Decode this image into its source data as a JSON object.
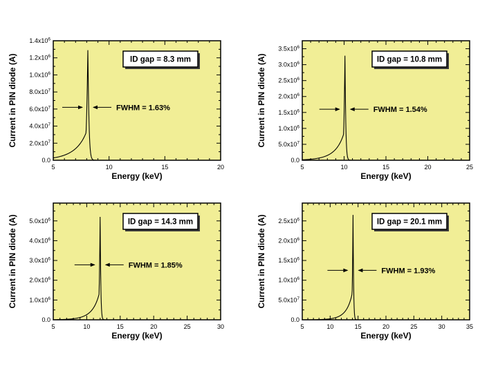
{
  "page": {
    "background": "#ffffff",
    "plot_background": "#f1ee96",
    "curve_color": "#000000",
    "frame_color": "#000000",
    "shadow_color": "#3a3a3a"
  },
  "chart_data": [
    {
      "type": "line",
      "title": "ID gap = 8.3 mm",
      "fwhm_label": "FWHM = 1.63%",
      "fwhm_percent": 1.63,
      "xlabel": "Energy (keV)",
      "ylabel": "Current in PIN diode (A)",
      "xlim": [
        5,
        20
      ],
      "x_major_ticks": [
        5,
        10,
        15,
        20
      ],
      "x_minor_step": 1,
      "ylim": [
        0,
        1.4e-06
      ],
      "y_major_ticks": [
        0,
        2e-07,
        4e-07,
        6e-07,
        8e-07,
        1e-06,
        1.2e-06,
        1.4e-06
      ],
      "y_tick_labels": [
        "0.0",
        "2.0x10^7",
        "4.0x10^7",
        "6.0x10^7",
        "8.0x10^7",
        "1.0x10^6",
        "1.2x10^6",
        "1.4x10^6"
      ],
      "peak_energy_kev": 8.1,
      "peak_current_a": 1.29e-06,
      "fwhm_arrow_y": 6.2e-07,
      "grid": false,
      "legend": false
    },
    {
      "type": "line",
      "title": "ID gap = 10.8 mm",
      "fwhm_label": "FWHM = 1.54%",
      "fwhm_percent": 1.54,
      "xlabel": "Energy (keV)",
      "ylabel": "Current in PIN diode (A)",
      "xlim": [
        5,
        25
      ],
      "x_major_ticks": [
        5,
        10,
        15,
        20,
        25
      ],
      "x_minor_step": 1,
      "ylim": [
        0,
        3.75e-06
      ],
      "y_major_ticks": [
        0,
        5e-07,
        1e-06,
        1.5e-06,
        2e-06,
        2.5e-06,
        3e-06,
        3.5e-06
      ],
      "y_tick_labels": [
        "0.0",
        "5.0x10^7",
        "1.0x10^6",
        "1.5x10^6",
        "2.0x10^6",
        "2.5x10^6",
        "3.0x10^6",
        "3.5x10^6"
      ],
      "peak_energy_kev": 10.1,
      "peak_current_a": 3.28e-06,
      "fwhm_arrow_y": 1.6e-06,
      "grid": false,
      "legend": false
    },
    {
      "type": "line",
      "title": "ID gap = 14.3 mm",
      "fwhm_label": "FWHM = 1.85%",
      "fwhm_percent": 1.85,
      "xlabel": "Energy (keV)",
      "ylabel": "Current in PIN diode (A)",
      "xlim": [
        5,
        30
      ],
      "x_major_ticks": [
        5,
        10,
        15,
        20,
        25,
        30
      ],
      "x_minor_step": 1,
      "ylim": [
        0,
        5.9e-06
      ],
      "y_major_ticks": [
        0,
        1e-06,
        2e-06,
        3e-06,
        4e-06,
        5e-06
      ],
      "y_tick_labels": [
        "0.0",
        "1.0x10^6",
        "2.0x10^6",
        "3.0x10^6",
        "4.0x10^6",
        "5.0x10^6"
      ],
      "peak_energy_kev": 12.0,
      "peak_current_a": 5.2e-06,
      "fwhm_arrow_y": 2.78e-06,
      "grid": false,
      "legend": false
    },
    {
      "type": "line",
      "title": "ID gap = 20.1 mm",
      "fwhm_label": "FWHM = 1.93%",
      "fwhm_percent": 1.93,
      "xlabel": "Energy (keV)",
      "ylabel": "Current in PIN diode (A)",
      "xlim": [
        5,
        35
      ],
      "x_major_ticks": [
        5,
        10,
        15,
        20,
        25,
        30,
        35
      ],
      "x_minor_step": 1,
      "ylim": [
        0,
        2.95e-06
      ],
      "y_major_ticks": [
        0,
        5e-07,
        1e-06,
        1.5e-06,
        2e-06,
        2.5e-06
      ],
      "y_tick_labels": [
        "0.0",
        "5.0x10^7",
        "1.0x10^6",
        "1.5x10^6",
        "2.0x10^6",
        "2.5x10^6"
      ],
      "peak_energy_kev": 14.1,
      "peak_current_a": 2.65e-06,
      "fwhm_arrow_y": 1.25e-06,
      "grid": false,
      "legend": false
    }
  ]
}
